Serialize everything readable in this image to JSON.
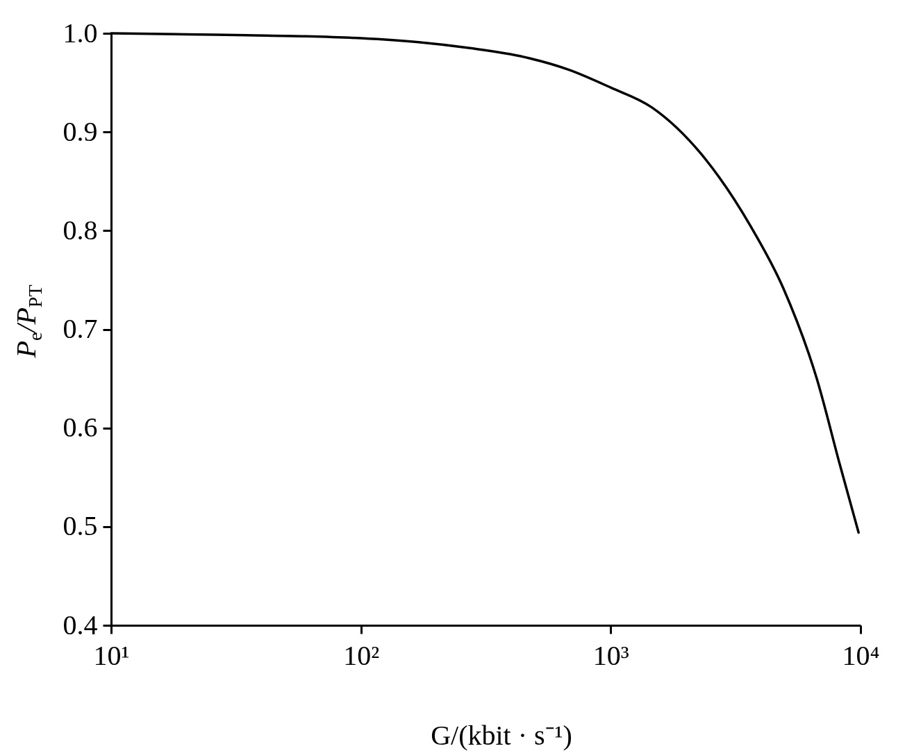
{
  "chart_data": {
    "type": "line",
    "xlabel": "G/(kbit · s⁻¹)",
    "ylabel": "P$_{e}$/P$_{PT}$",
    "log": "x",
    "x": [
      10,
      20,
      35,
      60,
      100,
      170,
      273,
      450,
      681,
      1000,
      1459,
      2297,
      3640,
      4920,
      6680,
      8260,
      9820
    ],
    "series": [
      {
        "color": "#000000",
        "values": [
          1.0,
          0.999,
          0.998,
          0.997,
          0.995,
          0.991,
          0.985,
          0.976,
          0.963,
          0.945,
          0.925,
          0.878,
          0.804,
          0.741,
          0.65,
          0.563,
          0.494
        ]
      }
    ],
    "xlim": [
      10,
      10000
    ],
    "xticks": [
      {
        "value": 10,
        "label": "10¹"
      },
      {
        "value": 100,
        "label": "10²"
      },
      {
        "value": 1000,
        "label": "10³"
      },
      {
        "value": 10000,
        "label": "10⁴"
      }
    ],
    "ylim": [
      0.4,
      1.0
    ],
    "yticks": [
      0.4,
      0.5,
      0.6,
      0.7,
      0.8,
      0.9,
      {
        "value": 1,
        "label": "1.0"
      }
    ],
    "grid": false,
    "marker": "none",
    "line_style": "solid"
  }
}
